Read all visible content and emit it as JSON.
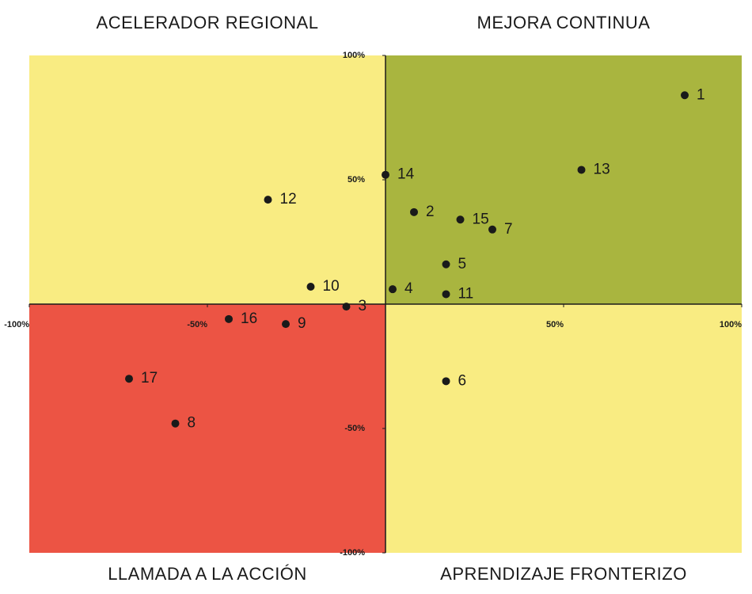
{
  "chart_data": {
    "type": "scatter",
    "quadrants": [
      {
        "label": "ACELERADOR REGIONAL",
        "color": "#f9ec82"
      },
      {
        "label": "MEJORA CONTINUA",
        "color": "#a9b53f"
      },
      {
        "label": "LLAMADA A LA ACCIÓN",
        "color": "#ec5444"
      },
      {
        "label": "APRENDIZAJE FRONTERIZO",
        "color": "#f9ec82"
      }
    ],
    "xlim": [
      -100,
      100
    ],
    "ylim": [
      -100,
      100
    ],
    "xticks": [
      {
        "value": -100,
        "label": "-100%"
      },
      {
        "value": -50,
        "label": "-50%"
      },
      {
        "value": 50,
        "label": "50%"
      },
      {
        "value": 100,
        "label": "100%"
      }
    ],
    "yticks": [
      {
        "value": 100,
        "label": "100%"
      },
      {
        "value": 50,
        "label": "50%"
      },
      {
        "value": -50,
        "label": "-50%"
      },
      {
        "value": -100,
        "label": "-100%"
      }
    ],
    "point_color": "#1a1a1a",
    "labels": [
      "1",
      "13",
      "14",
      "12",
      "2",
      "15",
      "7",
      "5",
      "10",
      "4",
      "11",
      "3",
      "16",
      "9",
      "17",
      "8",
      "6"
    ],
    "x": [
      84,
      55,
      0,
      -33,
      8,
      21,
      30,
      17,
      -21,
      2,
      17,
      -11,
      -44,
      -28,
      -72,
      -59,
      17
    ],
    "y": [
      84,
      54,
      52,
      42,
      37,
      34,
      30,
      16,
      7,
      6,
      4,
      -1,
      -6,
      -8,
      -30,
      -48,
      -31
    ]
  }
}
